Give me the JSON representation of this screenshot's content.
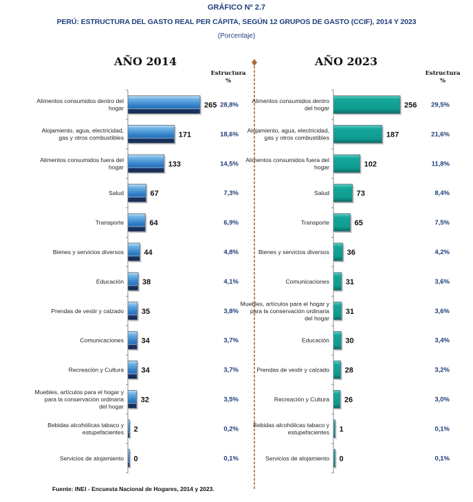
{
  "header": {
    "title": "GRÁFICO Nº 2.7",
    "subtitle": "PERÚ: ESTRUCTURA DEL GASTO REAL PER CÁPITA, SEGÚN 12 GRUPOS DE GASTO (CCIF), 2014 Y 2023",
    "unit": "(Porcentaje)"
  },
  "source": "Fuente: INEI - Encuesta Nacional de Hogares, 2014 y 2023.",
  "colors": {
    "bar_2014": "#2f7fc8",
    "bar_2014_dark": "#1b3566",
    "bar_2023": "#0f9a8f",
    "bar_2023_dark": "#0a5f58",
    "divider": "#b06a33",
    "pct_text": "#1f3e7a"
  },
  "chart_data": [
    {
      "type": "bar",
      "orientation": "horizontal",
      "title": "AÑO 2014",
      "structure_header": [
        "Estructura",
        "%"
      ],
      "xlabel": "",
      "ylabel": "",
      "xlim": [
        0,
        265
      ],
      "grid": false,
      "categories": [
        [
          "Alimentos consumidos dentro del",
          "hogar"
        ],
        [
          "Alojamiento, agua, electricidad,",
          "gas y otros combustibles"
        ],
        [
          "Alimentos consumidos fuera del",
          "hogar"
        ],
        [
          "Salud"
        ],
        [
          "Transporte"
        ],
        [
          "Bienes y servicios diversos"
        ],
        [
          "Educación"
        ],
        [
          "Prendas de vestir y calzado"
        ],
        [
          "Comunicaciones"
        ],
        [
          "Recreación y Cultura"
        ],
        [
          "Muebles, artículos para el hogar y",
          "para la conservación ordinaria",
          "del hogar"
        ],
        [
          "Bebidas alcohólicas tabaco y",
          "estupefacientes"
        ],
        [
          "Servicios de alojamiento"
        ]
      ],
      "values": [
        265,
        171,
        133,
        67,
        64,
        44,
        38,
        35,
        34,
        34,
        32,
        2,
        0
      ],
      "value_labels": [
        "265",
        "171",
        "133",
        "67",
        "64",
        "44",
        "38",
        "35",
        "34",
        "34",
        "32",
        "2",
        "0"
      ],
      "structure_pct": [
        "28,8%",
        "18,6%",
        "14,5%",
        "7,3%",
        "6,9%",
        "4,8%",
        "4,1%",
        "3,8%",
        "3,7%",
        "3,7%",
        "3,5%",
        "0,2%",
        "0,1%"
      ]
    },
    {
      "type": "bar",
      "orientation": "horizontal",
      "title": "AÑO 2023",
      "structure_header": [
        "Estructura",
        "%"
      ],
      "xlabel": "",
      "ylabel": "",
      "xlim": [
        0,
        256
      ],
      "grid": false,
      "categories": [
        [
          "Alimentos consumidos dentro",
          "del hogar"
        ],
        [
          "Alojamiento, agua, electricidad,",
          "gas y otros combustibles"
        ],
        [
          "Alimentos consumidos fuera del",
          "hogar"
        ],
        [
          "Salud"
        ],
        [
          "Transporte"
        ],
        [
          "Bienes y servicios diversos"
        ],
        [
          "Comunicaciones"
        ],
        [
          "Muebles, artículos para el hogar y",
          "para la conservación ordinaria",
          "del hogar"
        ],
        [
          "Educación"
        ],
        [
          "Prendas de vestir y calzado"
        ],
        [
          "Recreación y Cultura"
        ],
        [
          "Bebidas alcohólicas tabaco y",
          "estupefacientes"
        ],
        [
          "Servicios de alojamiento"
        ]
      ],
      "values": [
        256,
        187,
        102,
        73,
        65,
        36,
        31,
        31,
        30,
        28,
        26,
        1,
        0
      ],
      "value_labels": [
        "256",
        "187",
        "102",
        "73",
        "65",
        "36",
        "31",
        "31",
        "30",
        "28",
        "26",
        "1",
        "0"
      ],
      "structure_pct": [
        "29,5%",
        "21,6%",
        "11,8%",
        "8,4%",
        "7,5%",
        "4,2%",
        "3,6%",
        "3,6%",
        "3,4%",
        "3,2%",
        "3,0%",
        "0,1%",
        "0,1%"
      ]
    }
  ]
}
